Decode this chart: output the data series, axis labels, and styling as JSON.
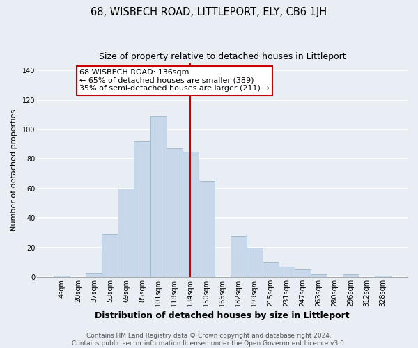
{
  "title": "68, WISBECH ROAD, LITTLEPORT, ELY, CB6 1JH",
  "subtitle": "Size of property relative to detached houses in Littleport",
  "xlabel": "Distribution of detached houses by size in Littleport",
  "ylabel": "Number of detached properties",
  "bin_labels": [
    "4sqm",
    "20sqm",
    "37sqm",
    "53sqm",
    "69sqm",
    "85sqm",
    "101sqm",
    "118sqm",
    "134sqm",
    "150sqm",
    "166sqm",
    "182sqm",
    "199sqm",
    "215sqm",
    "231sqm",
    "247sqm",
    "263sqm",
    "280sqm",
    "296sqm",
    "312sqm",
    "328sqm"
  ],
  "bar_heights": [
    1,
    0,
    3,
    29,
    60,
    92,
    109,
    87,
    85,
    65,
    0,
    28,
    20,
    10,
    7,
    5,
    2,
    0,
    2,
    0,
    1
  ],
  "bar_color": "#c8d8ea",
  "bar_edge_color": "#9ab8cc",
  "vline_x_idx": 8,
  "vline_color": "#cc0000",
  "annotation_line1": "68 WISBECH ROAD: 136sqm",
  "annotation_line2": "← 65% of detached houses are smaller (389)",
  "annotation_line3": "35% of semi-detached houses are larger (211) →",
  "annotation_box_color": "#ffffff",
  "annotation_box_edge": "#cc0000",
  "ylim": [
    0,
    145
  ],
  "yticks": [
    0,
    20,
    40,
    60,
    80,
    100,
    120,
    140
  ],
  "footer1": "Contains HM Land Registry data © Crown copyright and database right 2024.",
  "footer2": "Contains public sector information licensed under the Open Government Licence v3.0.",
  "bg_color": "#e8eef4",
  "plot_bg_color": "#e8eef4",
  "grid_color": "#ffffff",
  "title_fontsize": 10.5,
  "subtitle_fontsize": 9,
  "xlabel_fontsize": 9,
  "ylabel_fontsize": 8,
  "tick_fontsize": 7,
  "annotation_fontsize": 8,
  "footer_fontsize": 6.5
}
